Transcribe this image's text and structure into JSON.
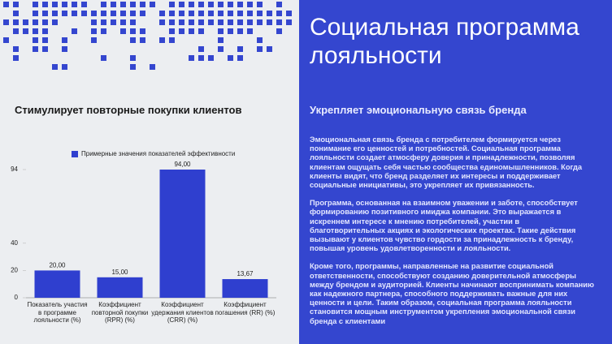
{
  "left_heading": "Стимулирует повторные покупки клиентов",
  "chart_data": {
    "type": "bar",
    "categories": [
      "Показатель участия в программе лояльности (%)",
      "Коэффициент повторной покупки (RPR) (%)",
      "Коэффициент удержания клиентов (CRR) (%)",
      "Коэффициент погашения (RR) (%)"
    ],
    "series": [
      {
        "name": "Примерные значения показателей эффективности",
        "color": "#2f3fcf",
        "values": [
          20,
          15,
          94,
          13.67
        ],
        "value_labels": [
          "20,00",
          "15,00",
          "94,00",
          "13,67"
        ]
      }
    ],
    "ylim": [
      0,
      94
    ],
    "yticks": [
      0,
      20,
      40,
      94
    ],
    "grid": false,
    "legend": "top"
  },
  "right": {
    "title": "Социальная программа лояльности",
    "subtitle": "Укрепляет эмоциональную связь бренда",
    "paragraphs": [
      "Эмоциональная связь бренда с потребителем формируется через понимание его ценностей и потребностей. Социальная программа лояльности создает атмосферу доверия и принадлежности, позволяя клиентам ощущать себя частью сообщества единомышленников. Когда клиенты видят, что бренд разделяет их интересы и поддерживает социальные инициативы, это укрепляет их привязанность.",
      "Программа, основанная на взаимном уважении и заботе, способствует формированию позитивного имиджа компании. Это выражается в искреннем интересе к мнению потребителей, участии в благотворительных акциях и экологических проектах. Такие действия вызывают у клиентов чувство гордости за принадлежность к бренду, повышая уровень удовлетворенности и лояльности.",
      "Кроме того, программы, направленные на развитие социальной ответственности, способствуют созданию доверительной атмосферы между брендом и аудиторией. Клиенты начинают воспринимать компанию как надежного партнера, способного поддерживать важные для них ценности и цели. Таким образом, социальная программа лояльности становится мощным инструментом укрепления эмоциональной связи бренда с клиентами"
    ]
  }
}
